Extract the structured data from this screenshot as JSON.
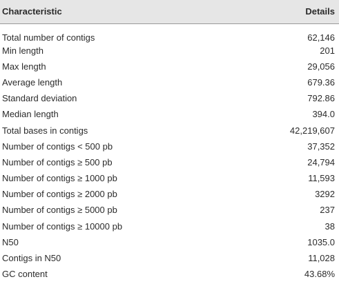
{
  "table": {
    "header": [
      "Characteristic",
      "Details"
    ],
    "rows": [
      [
        "Total number of contigs",
        "62,146"
      ],
      [
        "Min length",
        "201"
      ],
      [
        "Max length",
        "29,056"
      ],
      [
        "Average length",
        "679.36"
      ],
      [
        "Standard deviation",
        "792.86"
      ],
      [
        "Median length",
        "394.0"
      ],
      [
        "Total bases in contigs",
        "42,219,607"
      ],
      [
        "Number of contigs < 500 pb",
        "37,352"
      ],
      [
        "Number of contigs ≥ 500 pb",
        "24,794"
      ],
      [
        "Number of contigs ≥ 1000 pb",
        "11,593"
      ],
      [
        "Number of contigs ≥ 2000 pb",
        "3292"
      ],
      [
        "Number of contigs ≥ 5000 pb",
        "237"
      ],
      [
        "Number of contigs ≥ 10000 pb",
        "38"
      ],
      [
        "N50",
        "1035.0"
      ],
      [
        "Contigs in N50",
        "11,028"
      ],
      [
        "GC content",
        "43.68%"
      ]
    ]
  }
}
